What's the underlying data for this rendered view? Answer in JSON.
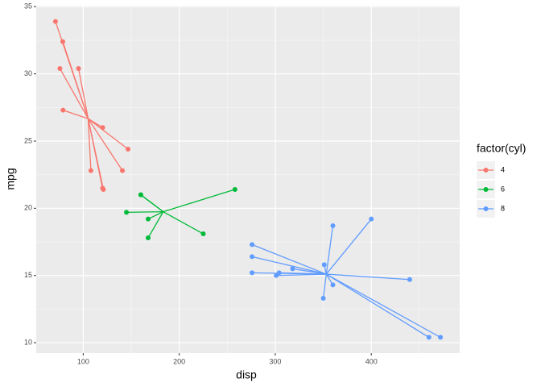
{
  "chart_data": {
    "type": "spider",
    "x_label": "disp",
    "y_label": "mpg",
    "legend_title": "factor(cyl)",
    "legend_position": "right",
    "grid": true,
    "xlim": [
      51.055,
      492.045
    ],
    "xticks": [
      100,
      200,
      300,
      400
    ],
    "ylim": [
      9.225,
      35.075
    ],
    "yticks": [
      10,
      15,
      20,
      25,
      30,
      35
    ],
    "series": [
      {
        "name": "4",
        "color": "#F8766D",
        "centroid": [
          105.136,
          26.664
        ],
        "x": [
          108,
          146.7,
          140.8,
          78.7,
          75.7,
          71.1,
          120.1,
          79,
          120.3,
          95.1,
          121
        ],
        "values": [
          22.8,
          24.4,
          22.8,
          32.4,
          30.4,
          33.9,
          21.5,
          27.3,
          26.0,
          30.4,
          21.4
        ]
      },
      {
        "name": "6",
        "color": "#00BA38",
        "centroid": [
          183.314,
          19.743
        ],
        "x": [
          160,
          160,
          258,
          225,
          167.6,
          167.6,
          145
        ],
        "values": [
          21,
          21,
          21.4,
          18.1,
          19.2,
          17.8,
          19.7
        ]
      },
      {
        "name": "8",
        "color": "#619CFF",
        "centroid": [
          353.1,
          15.1
        ],
        "x": [
          360,
          360,
          275.8,
          275.8,
          275.8,
          472,
          460,
          440,
          318,
          304,
          350,
          400,
          351,
          301
        ],
        "values": [
          18.7,
          14.3,
          16.4,
          17.3,
          15.2,
          10.4,
          10.4,
          14.7,
          15.5,
          15.2,
          13.3,
          19.2,
          15.8,
          15.0
        ]
      }
    ]
  }
}
